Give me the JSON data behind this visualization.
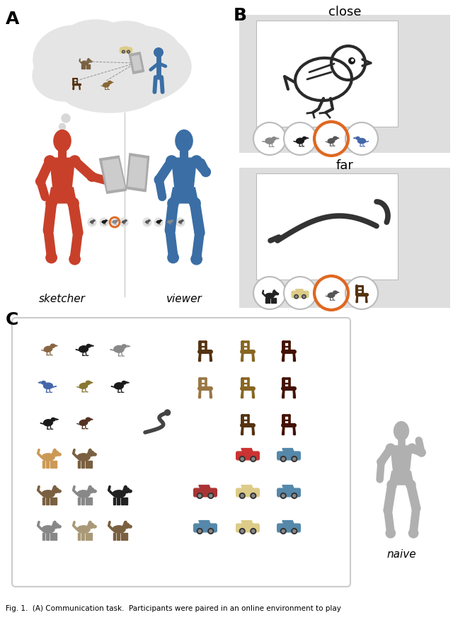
{
  "panel_labels": [
    "A",
    "B",
    "C"
  ],
  "panel_A": {
    "sketcher_color": "#C8402A",
    "viewer_color": "#3A6EA5",
    "naive_color": "#B0B0B0",
    "label_sketcher": "sketcher",
    "label_viewer": "viewer",
    "label_naive": "naive",
    "cloud_color": "#E5E5E5",
    "dot_color": "#D0D0D0",
    "tablet_color": "#AAAAAA",
    "tablet_screen_color": "#CCCCCC",
    "divider_color": "#CCCCCC"
  },
  "panel_B": {
    "label_close": "close",
    "label_far": "far",
    "bg_color": "#DEDEDE",
    "sketch_bg": "#FFFFFF",
    "circle_bg": "#FFFFFF",
    "circle_edge": "#CCCCCC",
    "orange_ring": "#E06820",
    "sketch_color": "#333333"
  },
  "panel_C": {
    "bg_color": "#FFFFFF",
    "border_color": "#CCCCCC",
    "label_naive": "naive",
    "naive_color": "#B0B0B0",
    "sketch_color": "#444444"
  },
  "caption": "Fig. 1.  (A) Communication task.  Participants were paired in an online environment to play"
}
